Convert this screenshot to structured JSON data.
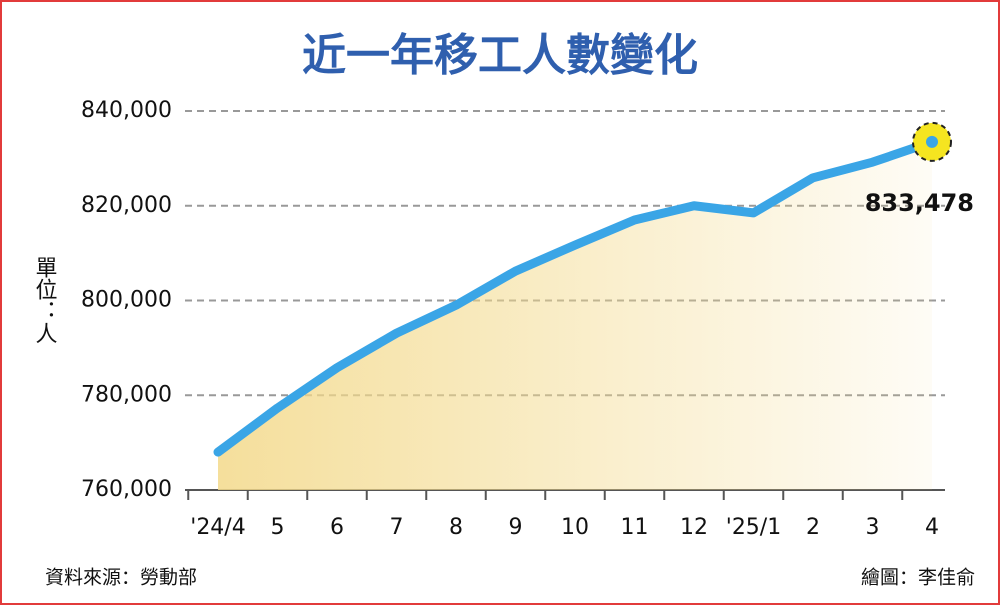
{
  "chart_data": {
    "type": "line",
    "title": "近一年移工人數變化",
    "y_label": "單位：人",
    "source": "資料來源：勞動部",
    "credit": "繪圖：李佳俞",
    "categories": [
      "'24/4",
      "5",
      "6",
      "7",
      "8",
      "9",
      "10",
      "11",
      "12",
      "'25/1",
      "2",
      "3",
      "4"
    ],
    "values": [
      768000,
      777300,
      785800,
      793100,
      799000,
      806200,
      811700,
      817000,
      820000,
      818500,
      825900,
      829200,
      833478
    ],
    "value_labels": [
      null,
      null,
      null,
      null,
      null,
      null,
      null,
      null,
      null,
      null,
      null,
      null,
      "833,478"
    ],
    "color": "#3aa5e6",
    "area_color": "#f3d98a",
    "ylim": [
      760000,
      840000
    ],
    "yticks": [
      {
        "value": 760000,
        "label": "760,000"
      },
      {
        "value": 780000,
        "label": "780,000"
      },
      {
        "value": 800000,
        "label": "800,000"
      },
      {
        "value": 820000,
        "label": "820,000"
      },
      {
        "value": 840000,
        "label": "840,000"
      }
    ],
    "grid": true
  }
}
